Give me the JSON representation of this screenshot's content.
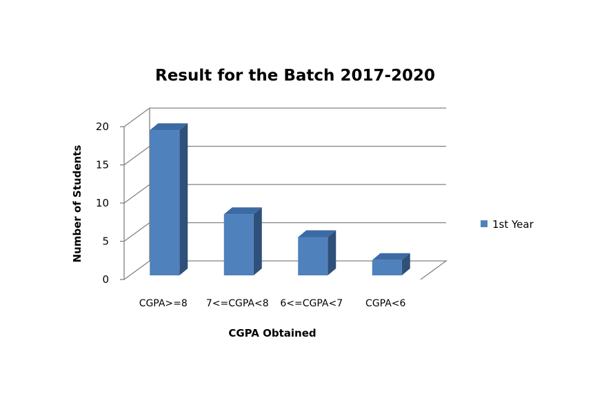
{
  "chart_data": {
    "type": "bar",
    "title": "Result for the Batch 2017-2020",
    "xlabel": "CGPA Obtained",
    "ylabel": "Number of Students",
    "categories": [
      "CGPA>=8",
      "7<=CGPA<8",
      "6<=CGPA<7",
      "CGPA<6"
    ],
    "series": [
      {
        "name": "1st Year",
        "values": [
          19,
          8,
          5,
          2
        ]
      }
    ],
    "ylim": [
      0,
      20
    ],
    "yticks": [
      "0",
      "5",
      "10",
      "15",
      "20"
    ],
    "grid": true,
    "legend": "right",
    "style": "3d-column",
    "colors": {
      "bar_front": "#4f81bd",
      "bar_side": "#2e5079",
      "bar_top": "#3c6aa3",
      "grid": "#808080"
    }
  }
}
